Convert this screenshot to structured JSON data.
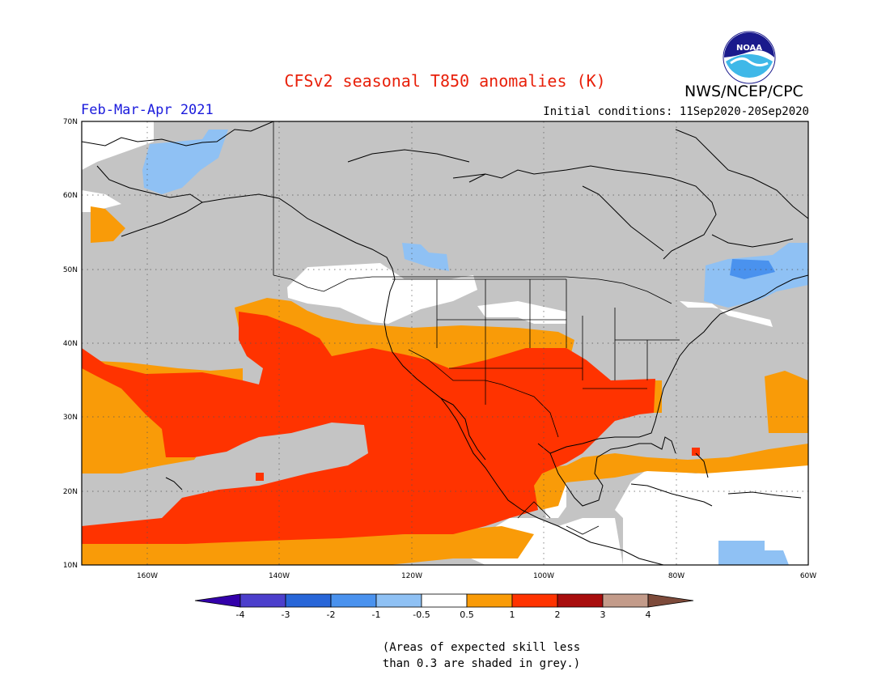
{
  "header": {
    "title": "CFSv2 seasonal T850 anomalies (K)",
    "season": "Feb-Mar-Apr 2021",
    "initial_conditions": "Initial conditions: 11Sep2020-20Sep2020",
    "agency": "NWS/NCEP/CPC",
    "logo_text": "NOAA"
  },
  "colors": {
    "title": "#e8200a",
    "season": "#1a1adc",
    "grey": "#c4c4c4",
    "ocean_white": "#ffffff",
    "coast": "#000000"
  },
  "map": {
    "lat_labels": [
      "70N",
      "60N",
      "50N",
      "40N",
      "30N",
      "20N",
      "10N"
    ],
    "lon_labels": [
      "160W",
      "140W",
      "120W",
      "100W",
      "80W",
      "60W"
    ],
    "lat_range": [
      10,
      70
    ],
    "lon_range": [
      -170,
      -60
    ],
    "grid": "dotted"
  },
  "legend": {
    "bins": [
      {
        "color": "#3300aa"
      },
      {
        "color": "#4c3fcc"
      },
      {
        "color": "#2866d8"
      },
      {
        "color": "#4a92ee"
      },
      {
        "color": "#8fc1f4"
      },
      {
        "color": "#ffffff"
      },
      {
        "color": "#f99b08"
      },
      {
        "color": "#ff3300"
      },
      {
        "color": "#a80d0d"
      },
      {
        "color": "#c39b8a"
      },
      {
        "color": "#7d4a3a"
      }
    ],
    "tick_labels": [
      "-4",
      "-3",
      "-2",
      "-1",
      "-0.5",
      "0.5",
      "1",
      "2",
      "3",
      "4"
    ]
  },
  "note": {
    "line1": "(Areas of expected skill less",
    "line2": "than 0.3 are shaded in grey.)"
  }
}
